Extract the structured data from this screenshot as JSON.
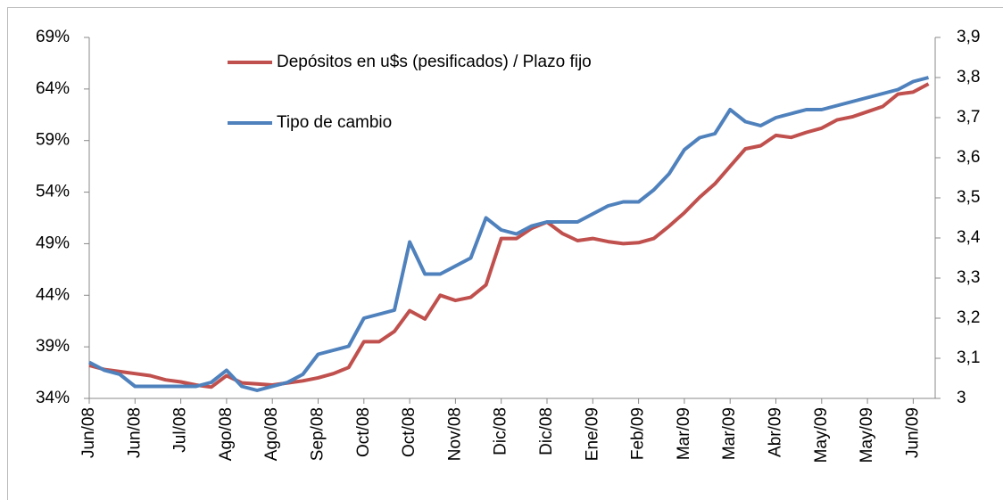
{
  "chart_data": {
    "type": "line",
    "categories": [
      "Jun/08",
      null,
      null,
      "Jun/08",
      null,
      null,
      "Jul/08",
      null,
      null,
      "Ago/08",
      null,
      null,
      "Ago/08",
      null,
      null,
      "Sep/08",
      null,
      null,
      "Oct/08",
      null,
      null,
      "Oct/08",
      null,
      null,
      "Nov/08",
      null,
      null,
      "Dic/08",
      null,
      null,
      "Dic/08",
      null,
      null,
      "Ene/09",
      null,
      null,
      "Feb/09",
      null,
      null,
      "Mar/09",
      null,
      null,
      "Mar/09",
      null,
      null,
      "Abr/09",
      null,
      null,
      "May/09",
      null,
      null,
      "May/09",
      null,
      null,
      "Jun/09",
      null
    ],
    "series": [
      {
        "name": "Depósitos en u$s (pesificados) / Plazo fijo",
        "color": "#c0504d",
        "axis": "y",
        "values": [
          37.2,
          36.8,
          36.6,
          36.4,
          36.2,
          35.8,
          35.6,
          35.3,
          35.1,
          36.2,
          35.5,
          35.4,
          35.3,
          35.5,
          35.7,
          36,
          36.4,
          37,
          39.5,
          39.5,
          40.5,
          42.5,
          41.7,
          44,
          43.5,
          43.8,
          45,
          49.5,
          49.5,
          50.5,
          51.1,
          50,
          49.3,
          49.5,
          49.2,
          49,
          49.1,
          49.5,
          50.7,
          52,
          53.5,
          54.8,
          56.5,
          58.2,
          58.5,
          59.5,
          59.3,
          59.8,
          60.2,
          61,
          61.3,
          61.8,
          62.3,
          63.5,
          63.7,
          64.5
        ]
      },
      {
        "name": "Tipo de cambio",
        "color": "#4f81bd",
        "axis": "y2",
        "values": [
          3.09,
          3.07,
          3.06,
          3.03,
          3.03,
          3.03,
          3.03,
          3.03,
          3.04,
          3.07,
          3.03,
          3.02,
          3.03,
          3.04,
          3.06,
          3.11,
          3.12,
          3.13,
          3.2,
          3.21,
          3.22,
          3.39,
          3.31,
          3.31,
          3.33,
          3.35,
          3.45,
          3.42,
          3.41,
          3.43,
          3.44,
          3.44,
          3.44,
          3.46,
          3.48,
          3.49,
          3.49,
          3.52,
          3.56,
          3.62,
          3.65,
          3.66,
          3.72,
          3.69,
          3.68,
          3.7,
          3.71,
          3.72,
          3.72,
          3.73,
          3.74,
          3.75,
          3.76,
          3.77,
          3.79,
          3.8
        ]
      }
    ],
    "ylim": [
      34,
      69
    ],
    "yticks": [
      {
        "value": 34,
        "label": "34%"
      },
      {
        "value": 39,
        "label": "39%"
      },
      {
        "value": 44,
        "label": "44%"
      },
      {
        "value": 49,
        "label": "49%"
      },
      {
        "value": 54,
        "label": "54%"
      },
      {
        "value": 59,
        "label": "59%"
      },
      {
        "value": 64,
        "label": "64%"
      },
      {
        "value": 69,
        "label": "69%"
      }
    ],
    "y2lim": [
      3,
      3.9
    ],
    "y2ticks": [
      3,
      {
        "value": 3.1,
        "label": "3,1"
      },
      {
        "value": 3.2,
        "label": "3,2"
      },
      {
        "value": 3.3,
        "label": "3,3"
      },
      {
        "value": 3.4,
        "label": "3,4"
      },
      {
        "value": 3.5,
        "label": "3,5"
      },
      {
        "value": 3.6,
        "label": "3,6"
      },
      {
        "value": 3.7,
        "label": "3,7"
      },
      {
        "value": 3.8,
        "label": "3,8"
      },
      {
        "value": 3.9,
        "label": "3,9"
      }
    ],
    "grid": false
  }
}
